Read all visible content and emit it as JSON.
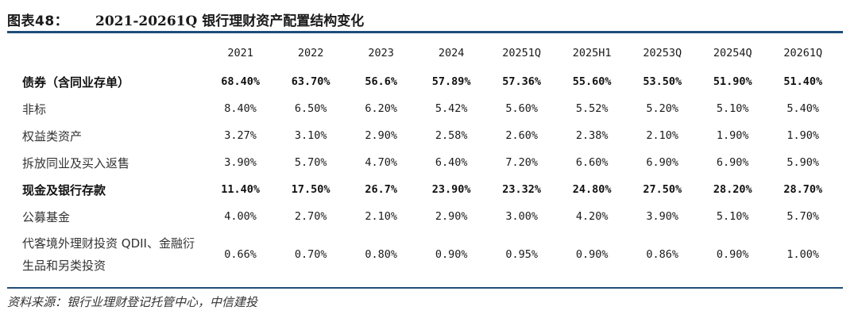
{
  "figure": {
    "number": "图表48：",
    "title": "2021-20261Q 银行理财资产配置结构变化"
  },
  "table": {
    "columns": [
      "2021",
      "2022",
      "2023",
      "2024",
      "20251Q",
      "2025H1",
      "20253Q",
      "20254Q",
      "20261Q"
    ],
    "rows": [
      {
        "label": "债券（含同业存单）",
        "bold": true,
        "values": [
          "68.40%",
          "63.70%",
          "56.6%",
          "57.89%",
          "57.36%",
          "55.60%",
          "53.50%",
          "51.90%",
          "51.40%"
        ]
      },
      {
        "label": "非标",
        "bold": false,
        "values": [
          "8.40%",
          "6.50%",
          "6.20%",
          "5.42%",
          "5.60%",
          "5.52%",
          "5.20%",
          "5.10%",
          "5.40%"
        ]
      },
      {
        "label": "权益类资产",
        "bold": false,
        "values": [
          "3.27%",
          "3.10%",
          "2.90%",
          "2.58%",
          "2.60%",
          "2.38%",
          "2.10%",
          "1.90%",
          "1.90%"
        ]
      },
      {
        "label": "拆放同业及买入返售",
        "bold": false,
        "values": [
          "3.90%",
          "5.70%",
          "4.70%",
          "6.40%",
          "7.20%",
          "6.60%",
          "6.90%",
          "6.90%",
          "5.90%"
        ]
      },
      {
        "label": "现金及银行存款",
        "bold": true,
        "values": [
          "11.40%",
          "17.50%",
          "26.7%",
          "23.90%",
          "23.32%",
          "24.80%",
          "27.50%",
          "28.20%",
          "28.70%"
        ]
      },
      {
        "label": "公募基金",
        "bold": false,
        "values": [
          "4.00%",
          "2.70%",
          "2.10%",
          "2.90%",
          "3.00%",
          "4.20%",
          "3.90%",
          "5.10%",
          "5.70%"
        ]
      },
      {
        "label": "代客境外理财投资 QDII、金融衍生品和另类投资",
        "bold": false,
        "values": [
          "0.66%",
          "0.70%",
          "0.80%",
          "0.90%",
          "0.95%",
          "0.90%",
          "0.86%",
          "0.90%",
          "1.00%"
        ]
      }
    ]
  },
  "source": "资料来源：银行业理财登记托管中心，中信建投"
}
